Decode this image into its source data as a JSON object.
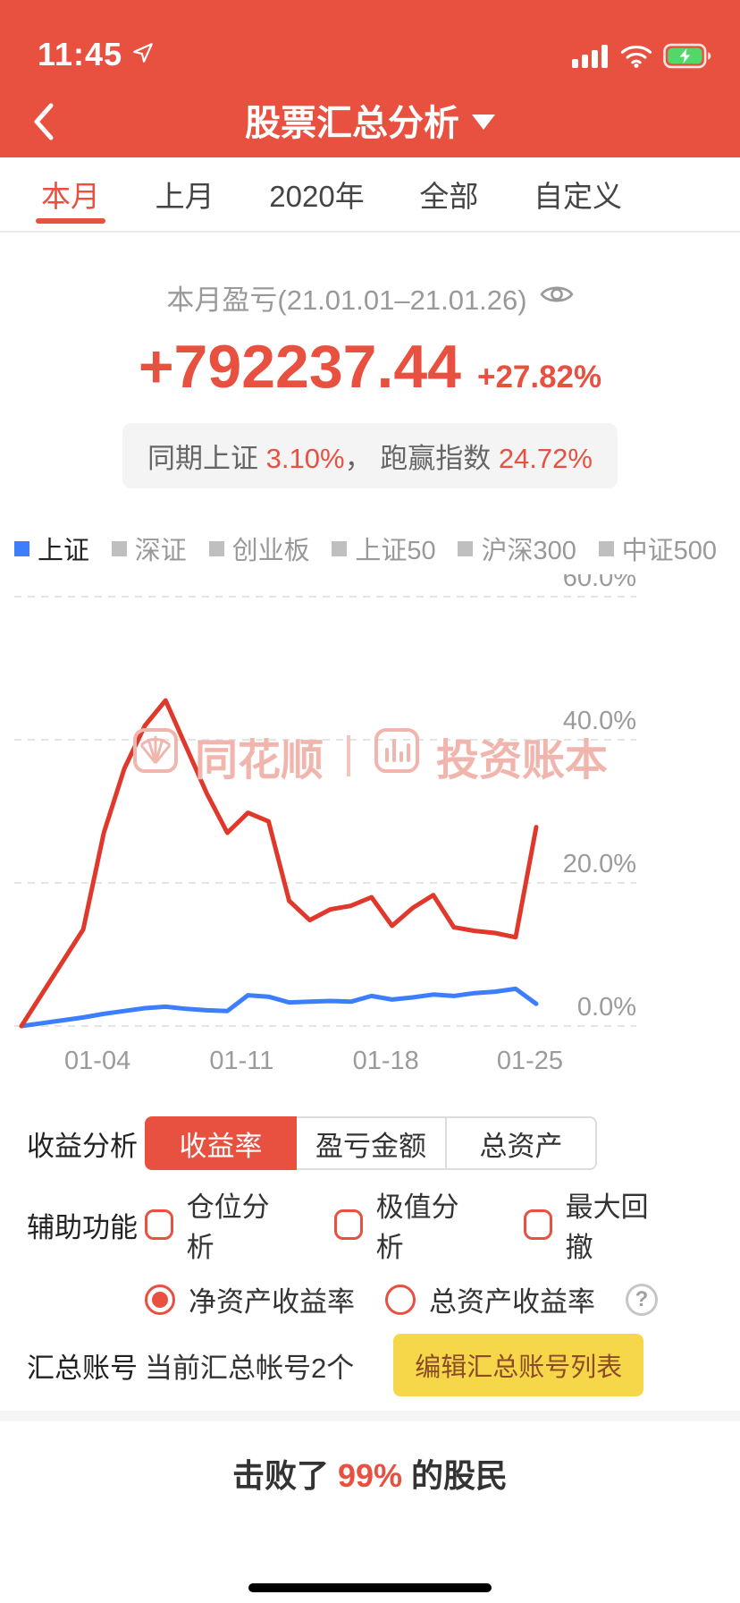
{
  "status_bar": {
    "time": "11:45"
  },
  "nav": {
    "title": "股票汇总分析"
  },
  "tabs": [
    {
      "label": "本月",
      "selected": true
    },
    {
      "label": "上月",
      "selected": false
    },
    {
      "label": "2020年",
      "selected": false
    },
    {
      "label": "全部",
      "selected": false
    },
    {
      "label": "自定义",
      "selected": false
    }
  ],
  "summary": {
    "period_label": "本月盈亏(21.01.01–21.01.26)",
    "amount": "+792237.44",
    "percent": "+27.82%",
    "benchmark_label": "同期上证 ",
    "benchmark_value": "3.10%",
    "outperform_label": "，  跑赢指数 ",
    "outperform_value": "24.72%"
  },
  "legend": [
    {
      "label": "上证",
      "active": true
    },
    {
      "label": "深证",
      "active": false
    },
    {
      "label": "创业板",
      "active": false
    },
    {
      "label": "上证50",
      "active": false
    },
    {
      "label": "沪深300",
      "active": false
    },
    {
      "label": "中证500",
      "active": false
    }
  ],
  "watermark": {
    "brand_left": "同花顺",
    "brand_right": "投资账本"
  },
  "chart_data": {
    "type": "line",
    "title": "",
    "x": [
      "01-01",
      "01-02",
      "01-03",
      "01-04",
      "01-05",
      "01-06",
      "01-07",
      "01-08",
      "01-09",
      "01-10",
      "01-11",
      "01-12",
      "01-13",
      "01-14",
      "01-15",
      "01-16",
      "01-17",
      "01-18",
      "01-19",
      "01-20",
      "01-21",
      "01-22",
      "01-23",
      "01-24",
      "01-25",
      "01-26"
    ],
    "x_ticks": [
      {
        "label": "01-04",
        "index": 3
      },
      {
        "label": "01-11",
        "index": 10
      },
      {
        "label": "01-18",
        "index": 17
      },
      {
        "label": "01-25",
        "index": 24
      }
    ],
    "y_ticks": [
      {
        "label": "60.0%",
        "value": 60
      },
      {
        "label": "40.0%",
        "value": 40
      },
      {
        "label": "20.0%",
        "value": 20
      },
      {
        "label": "0.0%",
        "value": 0
      }
    ],
    "ylim": [
      0,
      60
    ],
    "grid": "dashed-horizontal",
    "legend_position": "top",
    "series": [
      {
        "name": "上证指数",
        "color": "#3D7EFF",
        "values": [
          0,
          0.4,
          0.8,
          1.2,
          1.7,
          2.1,
          2.5,
          2.7,
          2.4,
          2.2,
          2.1,
          4.3,
          4.1,
          3.3,
          3.4,
          3.5,
          3.4,
          4.2,
          3.7,
          4.0,
          4.4,
          4.2,
          4.6,
          4.8,
          5.2,
          3.1
        ]
      },
      {
        "name": "净资产收益率",
        "color": "#E0392B",
        "values": [
          0,
          4.5,
          9,
          13.5,
          27,
          36,
          42,
          45.5,
          39,
          32.5,
          27,
          29.8,
          28.6,
          17.5,
          14.8,
          16.3,
          16.8,
          18.0,
          14.0,
          16.5,
          18.3,
          13.8,
          13.3,
          13.0,
          12.4,
          27.8
        ]
      }
    ]
  },
  "controls": {
    "profit_label": "收益分析",
    "profit_buttons": [
      {
        "label": "收益率",
        "selected": true
      },
      {
        "label": "盈亏金额",
        "selected": false
      },
      {
        "label": "总资产",
        "selected": false
      }
    ],
    "aux_label": "辅助功能",
    "checkboxes": [
      {
        "label": "仓位分析",
        "checked": false
      },
      {
        "label": "极值分析",
        "checked": false
      },
      {
        "label": "最大回撤",
        "checked": false
      }
    ],
    "radios": [
      {
        "label": "净资产收益率",
        "selected": true
      },
      {
        "label": "总资产收益率",
        "selected": false
      }
    ],
    "help_text": "?",
    "account_label": "汇总账号",
    "account_text": "当前汇总帐号2个",
    "edit_button_label": "编辑汇总账号列表"
  },
  "footer": {
    "prefix": "击败了 ",
    "highlight": "99%",
    "suffix": " 的股民"
  },
  "colors": {
    "accent": "#E8503F",
    "line_red": "#E0392B",
    "line_blue": "#3D7EFF",
    "yellow": "#F6D74A"
  }
}
